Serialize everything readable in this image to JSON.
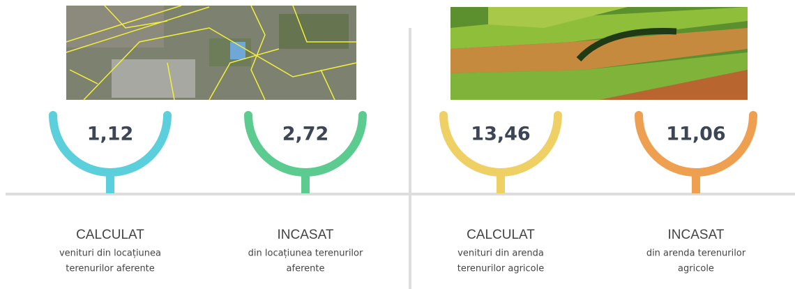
{
  "items": [
    {
      "value": "1,12",
      "heading": "CALCULAT",
      "description": [
        "venituri din locațiunea",
        "terenurilor aferente"
      ]
    },
    {
      "value": "2,72",
      "heading": "INCASAT",
      "description": [
        "din locațiunea terenurilor",
        "aferente"
      ]
    },
    {
      "value": "13,46",
      "heading": "CALCULAT",
      "description": [
        "venituri din arenda",
        "terenurilor agricole"
      ]
    },
    {
      "value": "11,06",
      "heading": "INCASAT",
      "description": [
        "din arenda terenurilor",
        "agricole"
      ]
    }
  ]
}
